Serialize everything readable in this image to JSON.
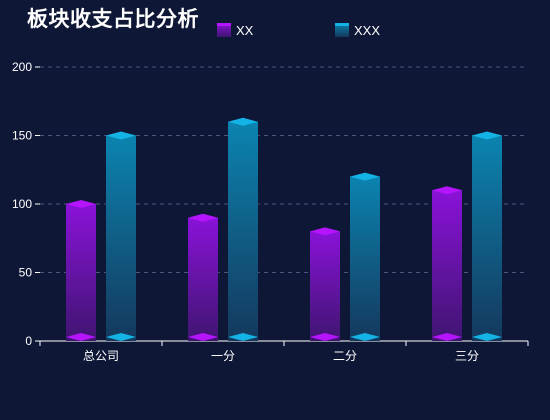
{
  "chart_data": {
    "type": "bar",
    "title": "板块收支占比分析",
    "categories": [
      "总公司",
      "一分",
      "二分",
      "三分"
    ],
    "series": [
      {
        "name": "XX",
        "values": [
          100,
          90,
          80,
          110
        ],
        "color_top": "#8a12d9",
        "color_bottom": "#3f1570",
        "cap_color": "#b514ff"
      },
      {
        "name": "XXX",
        "values": [
          150,
          160,
          120,
          150
        ],
        "color_top": "#0b84b0",
        "color_bottom": "#15385d",
        "cap_color": "#14b3e6"
      }
    ],
    "yticks": [
      0,
      50,
      100,
      150,
      200
    ],
    "ylim": [
      0,
      200
    ],
    "grid": true,
    "legend": "top-center"
  },
  "colors": {
    "background": "#0f1737",
    "grid": "#4a5680",
    "axis": "#ffffff",
    "text": "#ffffff"
  }
}
